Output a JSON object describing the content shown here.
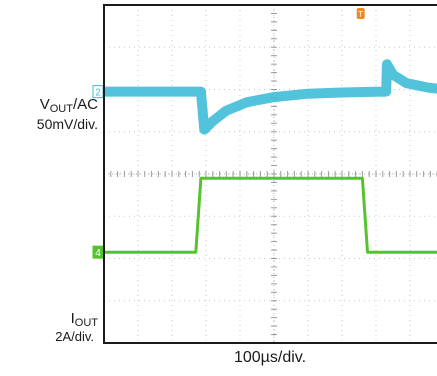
{
  "chart_data": {
    "type": "line",
    "title": "",
    "time_scale": "100µs/div.",
    "divisions_x": 10,
    "divisions_y": 8,
    "grid": true,
    "series": [
      {
        "name": "V_OUT/AC",
        "scale": "50mV/div.",
        "channel_marker": "2",
        "color": "#3fbcd6",
        "x_div": [
          0,
          2.85,
          2.95,
          3.2,
          3.6,
          4.2,
          5.0,
          6.0,
          7.0,
          8.3,
          8.32,
          8.5,
          8.9,
          9.5,
          10.0
        ],
        "y_div": [
          5.95,
          5.95,
          5.05,
          5.25,
          5.5,
          5.7,
          5.82,
          5.9,
          5.93,
          5.95,
          6.6,
          6.35,
          6.15,
          6.05,
          6.0
        ]
      },
      {
        "name": "I_OUT",
        "scale": "2A/div.",
        "channel_marker": "4",
        "color": "#55c22e",
        "x_div": [
          0,
          2.7,
          2.85,
          7.6,
          7.75,
          10.0
        ],
        "y_div": [
          2.15,
          2.15,
          3.9,
          3.9,
          2.15,
          2.15
        ]
      }
    ],
    "trigger_marker": "T"
  },
  "labels": {
    "vout_main": "V",
    "vout_sub": "OUT",
    "vout_suffix": "/AC",
    "vout_scale": "50mV/div.",
    "iout_main": "I",
    "iout_sub": "OUT",
    "iout_scale": "2A/div.",
    "time_scale": "100µs/div."
  }
}
